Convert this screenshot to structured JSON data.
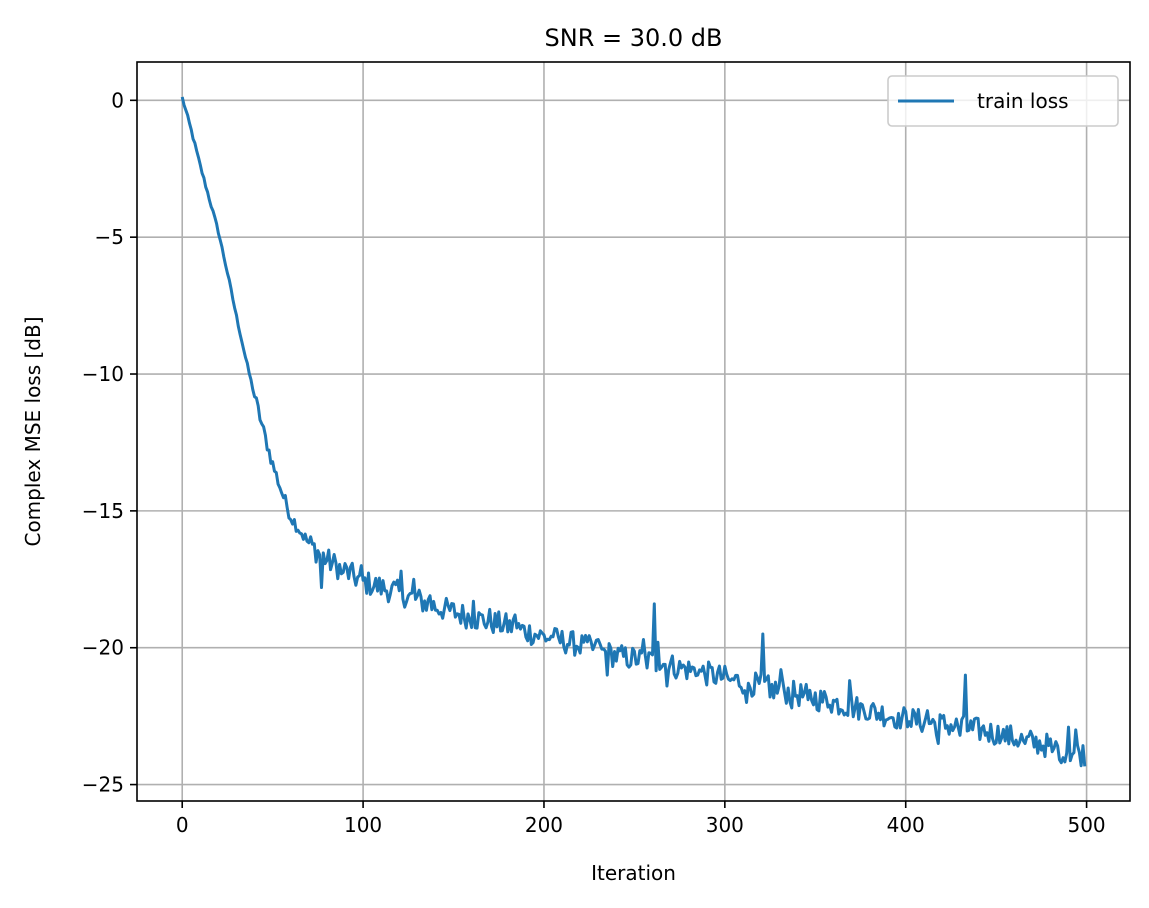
{
  "chart_data": {
    "type": "line",
    "title": "SNR = 30.0 dB",
    "xlabel": "Iteration",
    "ylabel": "Complex MSE loss [dB]",
    "xlim": [
      -25,
      524
    ],
    "ylim": [
      -25.6,
      1.4
    ],
    "xticks": [
      0,
      100,
      200,
      300,
      400,
      500
    ],
    "yticks": [
      0,
      -5,
      -10,
      -15,
      -20,
      -25
    ],
    "xtick_labels": [
      "0",
      "100",
      "200",
      "300",
      "400",
      "500"
    ],
    "ytick_labels": [
      "0",
      "−5",
      "−10",
      "−15",
      "−20",
      "−25"
    ],
    "grid": true,
    "legend_position": "top-right",
    "series": [
      {
        "name": "train loss",
        "color": "#1f77b4",
        "x_start": 0,
        "x_step": 1,
        "n_points": 500,
        "anchor_x": [
          0,
          5,
          10,
          15,
          20,
          25,
          30,
          35,
          40,
          45,
          50,
          55,
          60,
          70,
          80,
          90,
          100,
          120,
          140,
          160,
          180,
          200,
          220,
          240,
          260,
          280,
          300,
          320,
          340,
          360,
          380,
          400,
          420,
          440,
          460,
          480,
          499
        ],
        "anchor_y": [
          0.1,
          -1.1,
          -2.4,
          -3.6,
          -4.8,
          -6.3,
          -7.9,
          -9.4,
          -10.8,
          -12.1,
          -13.3,
          -14.3,
          -15.2,
          -16.2,
          -16.8,
          -17.2,
          -17.6,
          -18.0,
          -18.5,
          -18.9,
          -19.2,
          -19.6,
          -19.9,
          -20.3,
          -20.5,
          -20.8,
          -21.1,
          -21.4,
          -21.7,
          -22.0,
          -22.3,
          -22.6,
          -22.8,
          -23.0,
          -23.3,
          -23.6,
          -23.9
        ],
        "spikes": [
          [
            77,
            -17.8
          ],
          [
            88,
            -17.3
          ],
          [
            99,
            -17.0
          ],
          [
            117,
            -17.6
          ],
          [
            121,
            -17.2
          ],
          [
            128,
            -17.5
          ],
          [
            137,
            -18.1
          ],
          [
            150,
            -18.4
          ],
          [
            161,
            -18.3
          ],
          [
            170,
            -18.6
          ],
          [
            184,
            -18.8
          ],
          [
            205,
            -19.6
          ],
          [
            222,
            -19.8
          ],
          [
            230,
            -19.7
          ],
          [
            235,
            -21.0
          ],
          [
            251,
            -20.6
          ],
          [
            255,
            -19.7
          ],
          [
            261,
            -18.4
          ],
          [
            263,
            -19.8
          ],
          [
            268,
            -21.4
          ],
          [
            275,
            -20.5
          ],
          [
            285,
            -21.0
          ],
          [
            295,
            -21.3
          ],
          [
            303,
            -21.2
          ],
          [
            308,
            -21.4
          ],
          [
            312,
            -22.0
          ],
          [
            321,
            -19.5
          ],
          [
            325,
            -21.8
          ],
          [
            331,
            -20.8
          ],
          [
            337,
            -22.2
          ],
          [
            346,
            -21.9
          ],
          [
            358,
            -22.1
          ],
          [
            369,
            -21.2
          ],
          [
            378,
            -22.6
          ],
          [
            396,
            -22.4
          ],
          [
            402,
            -22.7
          ],
          [
            412,
            -22.3
          ],
          [
            418,
            -23.5
          ],
          [
            430,
            -23.2
          ],
          [
            433,
            -21.0
          ],
          [
            437,
            -23.0
          ],
          [
            444,
            -23.2
          ],
          [
            453,
            -23.3
          ],
          [
            466,
            -23.5
          ],
          [
            474,
            -23.4
          ],
          [
            481,
            -23.8
          ],
          [
            486,
            -24.2
          ],
          [
            490,
            -22.9
          ],
          [
            494,
            -23.0
          ]
        ]
      }
    ]
  }
}
